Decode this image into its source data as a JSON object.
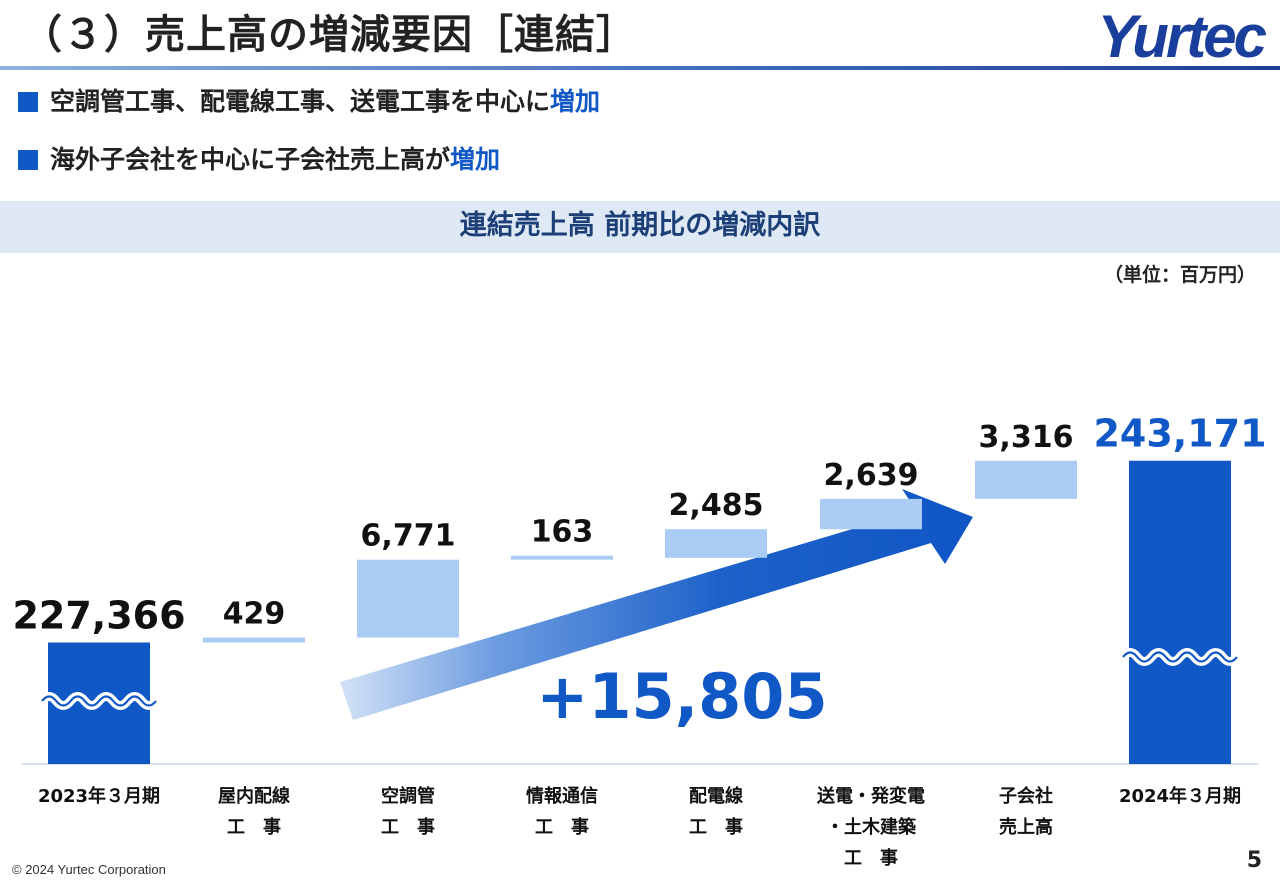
{
  "header": {
    "title": "（３）売上高の増減要因［連結］",
    "logo_text": "Yurtec"
  },
  "bullets": [
    {
      "text": "空調管工事、配電線工事、送電工事を中心に",
      "highlight": "増加"
    },
    {
      "text": "海外子会社を中心に子会社売上高が",
      "highlight": "増加"
    }
  ],
  "colors": {
    "accent": "#1158c7",
    "total_bar": "#1158c7",
    "increase_bar": "#a9cbf4",
    "band_bg": "#dfe9f5",
    "band_text": "#1c3f78"
  },
  "chart_data": {
    "type": "bar",
    "subtype": "waterfall",
    "title": "連結売上高 前期比の増減内訳",
    "unit_label": "（単位：百万円）",
    "axis_broken": true,
    "categories": [
      [
        "2023年３月期"
      ],
      [
        "屋内配線",
        "工　事"
      ],
      [
        "空調管",
        "工　事"
      ],
      [
        "情報通信",
        "工　事"
      ],
      [
        "配電線",
        "工　事"
      ],
      [
        "送電・発変電",
        "・土木建築",
        "工　事"
      ],
      [
        "子会社",
        "売上高"
      ],
      [
        "2024年３月期"
      ]
    ],
    "values": [
      227366,
      429,
      6771,
      163,
      2485,
      2639,
      3316,
      243171
    ],
    "value_labels": [
      "227,366",
      "429",
      "6,771",
      "163",
      "2,485",
      "2,639",
      "3,316",
      "243,171"
    ],
    "kinds": [
      "total",
      "increase",
      "increase",
      "increase",
      "increase",
      "increase",
      "increase",
      "total"
    ],
    "total_change_label": "+15,805"
  },
  "footer": {
    "copyright": "© 2024 Yurtec Corporation",
    "page_number": "5"
  }
}
